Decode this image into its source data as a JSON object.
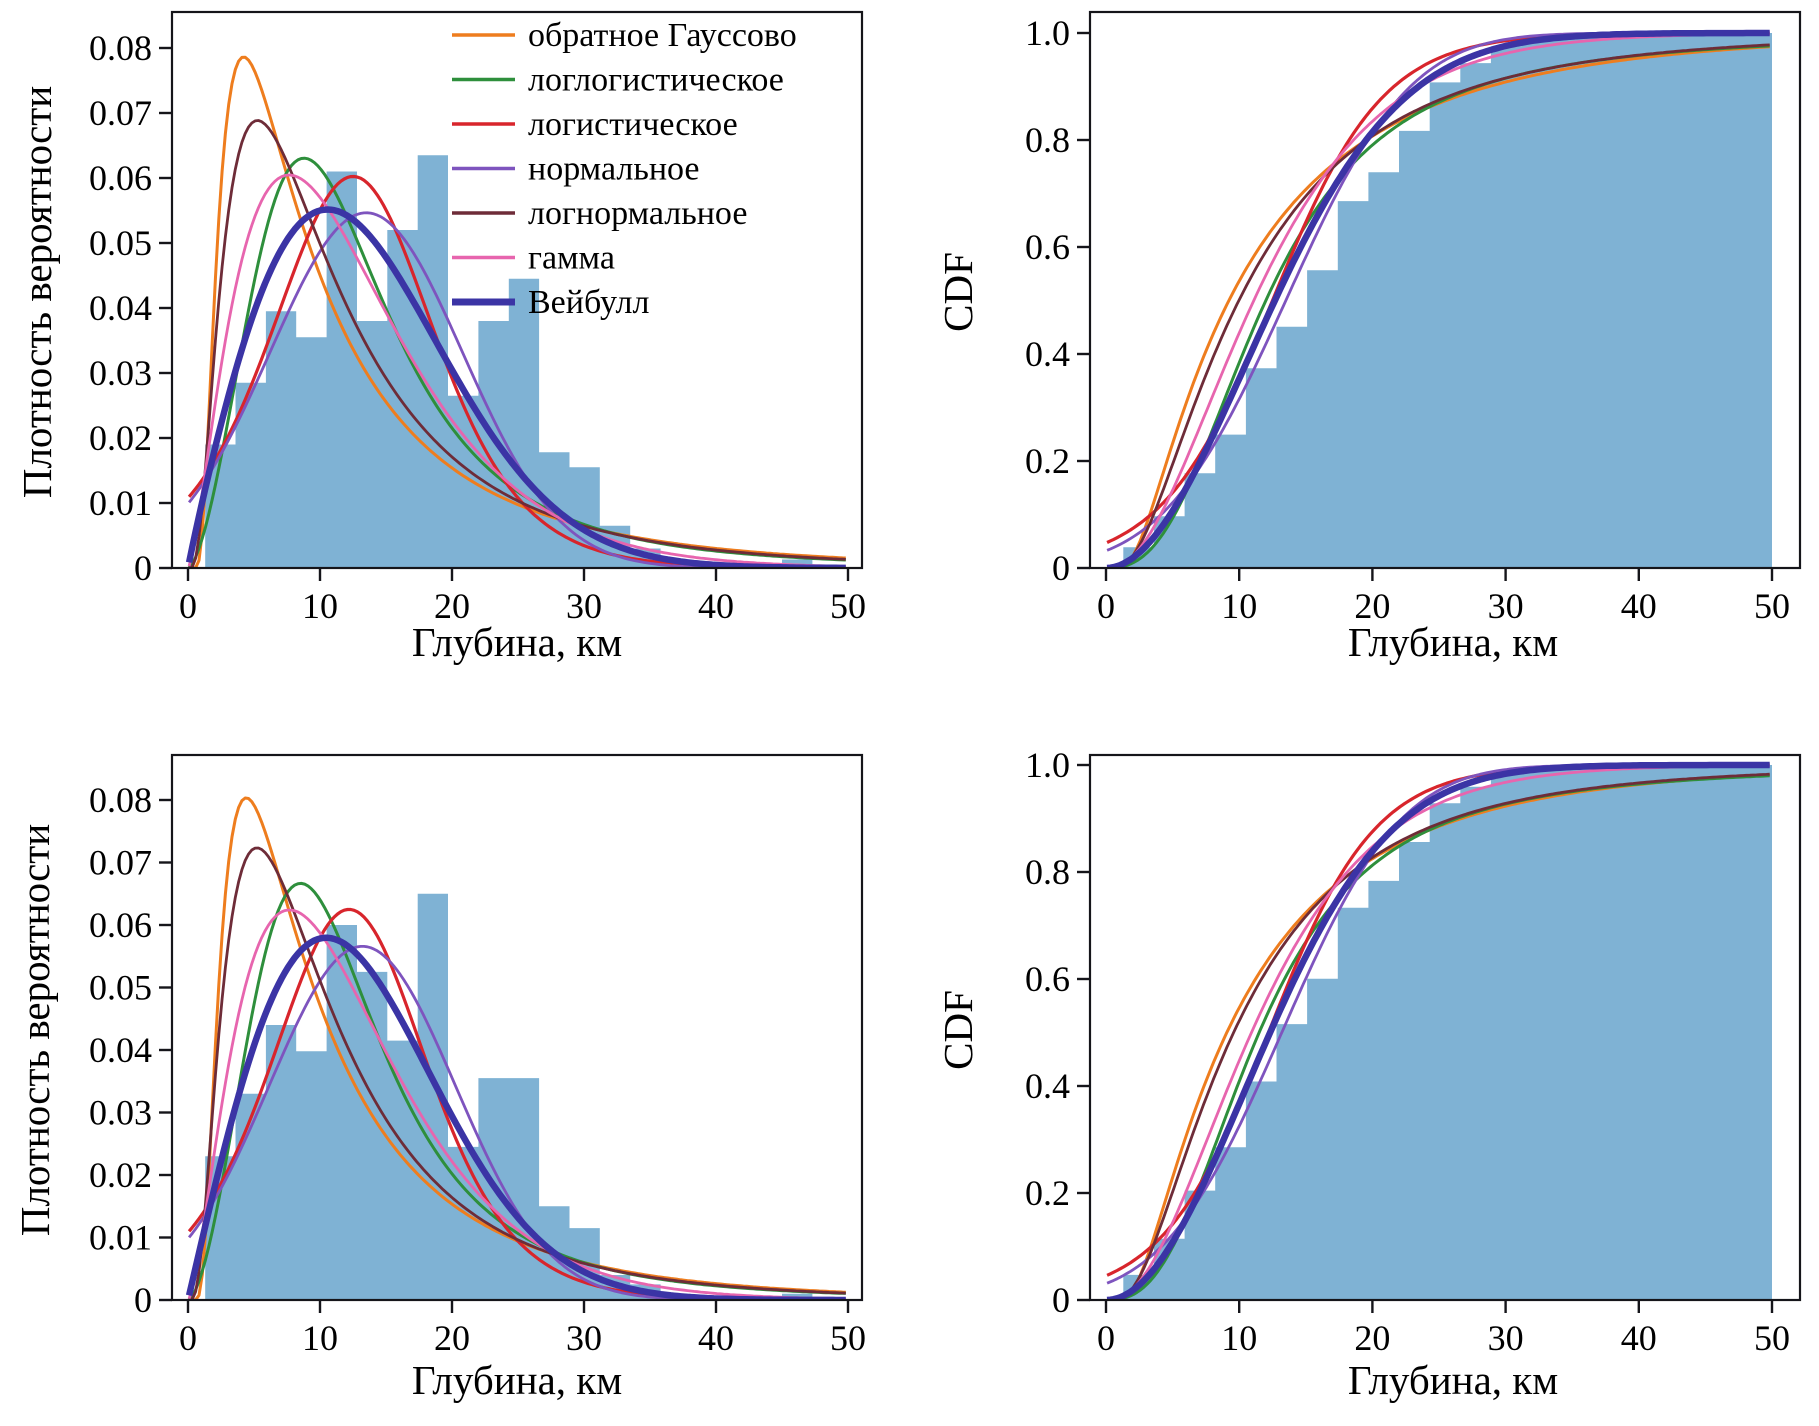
{
  "figure": {
    "background": "#ffffff",
    "axis_color": "#15151a",
    "histogram_color": "#7fb2d4",
    "xlabel": "Глубина, км",
    "pdf_ylabel": "Плотность вероятности",
    "cdf_ylabel": "CDF"
  },
  "legend": {
    "location": "upper-right-of-top-left-panel",
    "items": [
      {
        "label": "обратное Гауссово",
        "color": "#ee7d1e",
        "thick": false
      },
      {
        "label": "логлогистическое",
        "color": "#2e8f3c",
        "thick": false
      },
      {
        "label": "логистическое",
        "color": "#d8252c",
        "thick": false
      },
      {
        "label": "нормальное",
        "color": "#7e54be",
        "thick": false
      },
      {
        "label": "логнормальное",
        "color": "#6e2c38",
        "thick": false
      },
      {
        "label": "гамма",
        "color": "#e765ae",
        "thick": false
      },
      {
        "label": "Вейбулл",
        "color": "#3b34a5",
        "thick": true
      }
    ]
  },
  "chart_data": [
    {
      "id": "pdf-top",
      "position": "top-left",
      "type": "bar",
      "subtype": "histogram-with-fitted-pdf-curves",
      "xlabel": "Глубина, км",
      "ylabel": "Плотность вероятности",
      "xlim": [
        0,
        50
      ],
      "xticks": [
        0,
        10,
        20,
        30,
        40,
        50
      ],
      "ylim": [
        0,
        0.0855
      ],
      "yticks": [
        0,
        0.01,
        0.02,
        0.03,
        0.04,
        0.05,
        0.06,
        0.07,
        0.08
      ],
      "grid": false,
      "legend": true,
      "hist": {
        "bin_start": 1.3,
        "bin_width": 2.3,
        "densities": [
          0.019,
          0.0285,
          0.0395,
          0.0355,
          0.061,
          0.038,
          0.052,
          0.0635,
          0.0265,
          0.038,
          0.0445,
          0.0178,
          0.0155,
          0.0065,
          0.003,
          0.0013,
          0,
          0,
          0,
          0.0013
        ]
      },
      "curves": [
        {
          "label": "обратное Гауссово",
          "dist": "invgauss",
          "mu": 13.5,
          "lambda": 14,
          "peak": 0.078,
          "color": "#ee7d1e",
          "lw": 3
        },
        {
          "label": "логлогистическое",
          "dist": "loglogistic",
          "alpha": 12,
          "beta": 2.6,
          "peak": 0.063,
          "color": "#2e8f3c",
          "lw": 3
        },
        {
          "label": "логистическое",
          "dist": "logistic",
          "mu": 12.5,
          "s": 4.15,
          "peak": 0.0605,
          "color": "#d8252c",
          "lw": 3.2
        },
        {
          "label": "нормальное",
          "dist": "normal",
          "mu": 13.5,
          "sigma": 7.3,
          "peak": 0.055,
          "color": "#7e54be",
          "lw": 2.8
        },
        {
          "label": "логнормальное",
          "dist": "lognormal",
          "mu": 2.3,
          "sigma": 0.8,
          "peak": 0.067,
          "color": "#6e2c38",
          "lw": 2.8
        },
        {
          "label": "гамма",
          "dist": "gamma",
          "k": 2.5,
          "theta": 5.1,
          "peak": 0.059,
          "color": "#e765ae",
          "lw": 2.8
        },
        {
          "label": "Вейбулл",
          "dist": "weibull",
          "k": 1.95,
          "lambda": 15.3,
          "peak": 0.0555,
          "color": "#3b34a5",
          "lw": 6.5
        }
      ]
    },
    {
      "id": "cdf-top",
      "position": "top-right",
      "type": "area",
      "subtype": "empirical-cdf-with-fitted-cdf-curves",
      "xlabel": "Глубина, км",
      "ylabel": "CDF",
      "xlim": [
        0,
        50
      ],
      "xticks": [
        0,
        10,
        20,
        30,
        40,
        50
      ],
      "ylim": [
        0,
        1.04
      ],
      "yticks": [
        0,
        0.2,
        0.4,
        0.6,
        0.8,
        1.0
      ],
      "grid": false,
      "legend": false,
      "hist": {
        "bin_start": 1.3,
        "bin_width": 2.3,
        "cumulative": [
          0.0387,
          0.0967,
          0.177,
          0.2493,
          0.3734,
          0.4508,
          0.5566,
          0.6858,
          0.7397,
          0.817,
          0.9076,
          0.9438,
          0.9754,
          0.9886,
          0.9947,
          0.9974,
          0.9974,
          0.9974,
          0.9974,
          1.0
        ]
      },
      "curves": [
        {
          "label": "обратное Гауссово",
          "dist": "invgauss",
          "mu": 13.5,
          "lambda": 14,
          "value_at_50": 0.97,
          "color": "#ee7d1e",
          "lw": 3
        },
        {
          "label": "логлогистическое",
          "dist": "loglogistic",
          "alpha": 12,
          "beta": 2.6,
          "value_at_50": 0.976,
          "color": "#2e8f3c",
          "lw": 3
        },
        {
          "label": "логистическое",
          "dist": "logistic",
          "mu": 12.5,
          "s": 4.15,
          "value_at_50": 1.0,
          "color": "#d8252c",
          "lw": 3.2
        },
        {
          "label": "нормальное",
          "dist": "normal",
          "mu": 13.5,
          "sigma": 7.3,
          "value_at_50": 1.0,
          "color": "#7e54be",
          "lw": 2.8
        },
        {
          "label": "логнормальное",
          "dist": "lognormal",
          "mu": 2.3,
          "sigma": 0.8,
          "value_at_50": 0.978,
          "color": "#6e2c38",
          "lw": 2.8
        },
        {
          "label": "гамма",
          "dist": "gamma",
          "k": 2.5,
          "theta": 5.1,
          "value_at_50": 0.997,
          "color": "#e765ae",
          "lw": 2.8
        },
        {
          "label": "Вейбулл",
          "dist": "weibull",
          "k": 1.95,
          "lambda": 15.3,
          "value_at_50": 1.0,
          "color": "#3b34a5",
          "lw": 6.5
        }
      ]
    },
    {
      "id": "pdf-bottom",
      "position": "bottom-left",
      "type": "bar",
      "subtype": "histogram-with-fitted-pdf-curves",
      "xlabel": "Глубина, км",
      "ylabel": "Плотность вероятности",
      "xlim": [
        0,
        50
      ],
      "xticks": [
        0,
        10,
        20,
        30,
        40,
        50
      ],
      "ylim": [
        0,
        0.0872
      ],
      "yticks": [
        0,
        0.01,
        0.02,
        0.03,
        0.04,
        0.05,
        0.06,
        0.07,
        0.08
      ],
      "grid": false,
      "legend": false,
      "hist": {
        "bin_start": 1.3,
        "bin_width": 2.3,
        "densities": [
          0.023,
          0.033,
          0.044,
          0.0398,
          0.06,
          0.0525,
          0.0415,
          0.065,
          0.0245,
          0.0355,
          0.0355,
          0.015,
          0.0115,
          0.004,
          0.0025,
          0.001,
          0,
          0,
          0,
          0.001
        ]
      },
      "curves": [
        {
          "label": "обратное Гауссово",
          "dist": "invgauss",
          "mu": 12.8,
          "lambda": 15,
          "peak": 0.084,
          "color": "#ee7d1e",
          "lw": 3
        },
        {
          "label": "логлогистическое",
          "dist": "loglogistic",
          "alpha": 11.5,
          "beta": 2.65,
          "peak": 0.066,
          "color": "#2e8f3c",
          "lw": 3
        },
        {
          "label": "логистическое",
          "dist": "logistic",
          "mu": 12.2,
          "s": 4.0,
          "peak": 0.062,
          "color": "#d8252c",
          "lw": 3.2
        },
        {
          "label": "нормальное",
          "dist": "normal",
          "mu": 13.2,
          "sigma": 7.05,
          "peak": 0.0565,
          "color": "#7e54be",
          "lw": 2.8
        },
        {
          "label": "логнормальное",
          "dist": "lognormal",
          "mu": 2.26,
          "sigma": 0.78,
          "peak": 0.071,
          "color": "#6e2c38",
          "lw": 2.8
        },
        {
          "label": "гамма",
          "dist": "gamma",
          "k": 2.6,
          "theta": 4.8,
          "peak": 0.0615,
          "color": "#e765ae",
          "lw": 2.8
        },
        {
          "label": "Вейбулл",
          "dist": "weibull",
          "k": 2.0,
          "lambda": 14.8,
          "peak": 0.0575,
          "color": "#3b34a5",
          "lw": 6.5
        }
      ]
    },
    {
      "id": "cdf-bottom",
      "position": "bottom-right",
      "type": "area",
      "subtype": "empirical-cdf-with-fitted-cdf-curves",
      "xlabel": "Глубина, км",
      "ylabel": "CDF",
      "xlim": [
        0,
        50
      ],
      "xticks": [
        0,
        10,
        20,
        30,
        40,
        50
      ],
      "ylim": [
        0,
        1.04
      ],
      "yticks": [
        0,
        0.2,
        0.4,
        0.6,
        0.8,
        1.0
      ],
      "grid": false,
      "legend": false,
      "hist": {
        "bin_start": 1.3,
        "bin_width": 2.3,
        "cumulative": [
          0.047,
          0.1145,
          0.2044,
          0.2857,
          0.4084,
          0.5157,
          0.6005,
          0.7333,
          0.7834,
          0.856,
          0.9285,
          0.9592,
          0.9827,
          0.9908,
          0.9959,
          0.998,
          0.998,
          0.998,
          0.998,
          1.0
        ]
      },
      "curves": [
        {
          "label": "обратное Гауссово",
          "dist": "invgauss",
          "mu": 12.8,
          "lambda": 15,
          "value_at_50": 0.972,
          "color": "#ee7d1e",
          "lw": 3
        },
        {
          "label": "логлогистическое",
          "dist": "loglogistic",
          "alpha": 11.5,
          "beta": 2.65,
          "value_at_50": 0.976,
          "color": "#2e8f3c",
          "lw": 3
        },
        {
          "label": "логистическое",
          "dist": "logistic",
          "mu": 12.2,
          "s": 4.0,
          "value_at_50": 1.0,
          "color": "#d8252c",
          "lw": 3.2
        },
        {
          "label": "нормальное",
          "dist": "normal",
          "mu": 13.2,
          "sigma": 7.05,
          "value_at_50": 1.0,
          "color": "#7e54be",
          "lw": 2.8
        },
        {
          "label": "логнормальное",
          "dist": "lognormal",
          "mu": 2.26,
          "sigma": 0.78,
          "value_at_50": 0.979,
          "color": "#6e2c38",
          "lw": 2.8
        },
        {
          "label": "гамма",
          "dist": "gamma",
          "k": 2.6,
          "theta": 4.8,
          "value_at_50": 0.998,
          "color": "#e765ae",
          "lw": 2.8
        },
        {
          "label": "Вейбулл",
          "dist": "weibull",
          "k": 2.0,
          "lambda": 14.8,
          "value_at_50": 1.0,
          "color": "#3b34a5",
          "lw": 6.5
        }
      ]
    }
  ]
}
